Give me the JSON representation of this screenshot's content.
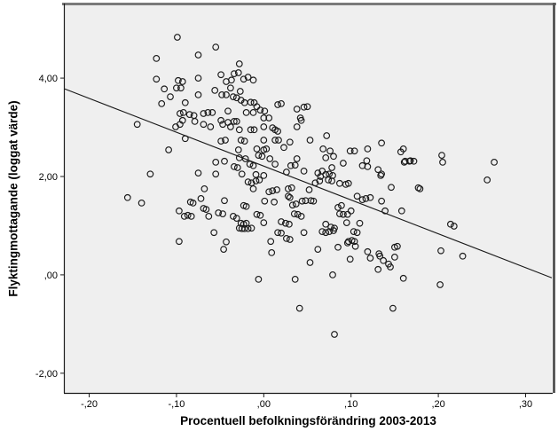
{
  "colors": {
    "plot_bg": "#efefef",
    "frame_dark": "#1a1a1a",
    "frame_top": "#7a7a7a",
    "frame_right": "#5a5a5a",
    "marker": "#1a1a1a",
    "fit_line": "#1a1a1a",
    "page_bg": "#ffffff"
  },
  "chart_data": {
    "type": "scatter",
    "title": "",
    "xlabel": "Procentuell befolkningsförändring 2003-2013",
    "ylabel": "Flyktingmottagande (loggat värde)",
    "xlim": [
      -0.228,
      0.33
    ],
    "ylim": [
      -2.4,
      5.48
    ],
    "grid": false,
    "legend": "none",
    "marker": "open-circle",
    "x_ticks": {
      "values": [
        -0.2,
        -0.1,
        0.0,
        0.1,
        0.2,
        0.3
      ],
      "labels": [
        "-,20",
        "-,10",
        ",00",
        ",10",
        ",20",
        ",30"
      ]
    },
    "y_ticks": {
      "values": [
        -2.0,
        0.0,
        2.0,
        4.0
      ],
      "labels": [
        "-2,00",
        ",00",
        "2,00",
        "4,00"
      ]
    },
    "fit_line": {
      "x": [
        -0.228,
        0.33
      ],
      "y": [
        3.78,
        -0.06
      ]
    },
    "points": [
      [
        -0.099,
        4.83
      ],
      [
        -0.123,
        4.4
      ],
      [
        -0.123,
        3.98
      ],
      [
        -0.114,
        3.78
      ],
      [
        -0.098,
        3.95
      ],
      [
        -0.093,
        3.93
      ],
      [
        -0.1,
        3.8
      ],
      [
        -0.095,
        3.8
      ],
      [
        -0.107,
        3.62
      ],
      [
        -0.117,
        3.48
      ],
      [
        -0.09,
        3.5
      ],
      [
        -0.145,
        3.06
      ],
      [
        -0.096,
        3.28
      ],
      [
        -0.092,
        3.3
      ],
      [
        -0.101,
        3.01
      ],
      [
        -0.096,
        3.06
      ],
      [
        -0.093,
        3.14
      ],
      [
        -0.055,
        4.63
      ],
      [
        -0.075,
        4.47
      ],
      [
        -0.028,
        4.29
      ],
      [
        -0.075,
        4.0
      ],
      [
        -0.049,
        4.07
      ],
      [
        -0.029,
        4.11
      ],
      [
        -0.034,
        4.09
      ],
      [
        -0.023,
        3.98
      ],
      [
        -0.018,
        4.02
      ],
      [
        -0.012,
        3.96
      ],
      [
        -0.043,
        3.93
      ],
      [
        -0.037,
        3.96
      ],
      [
        -0.075,
        3.66
      ],
      [
        -0.056,
        3.75
      ],
      [
        -0.048,
        3.66
      ],
      [
        -0.043,
        3.66
      ],
      [
        -0.038,
        3.8
      ],
      [
        -0.035,
        3.62
      ],
      [
        -0.031,
        3.6
      ],
      [
        -0.026,
        3.55
      ],
      [
        -0.022,
        3.5
      ],
      [
        -0.027,
        3.73
      ],
      [
        -0.041,
        3.33
      ],
      [
        -0.015,
        3.51
      ],
      [
        -0.011,
        3.5
      ],
      [
        -0.008,
        3.42
      ],
      [
        -0.004,
        3.35
      ],
      [
        0.001,
        3.33
      ],
      [
        -0.02,
        3.3
      ],
      [
        -0.012,
        3.3
      ],
      [
        0.0,
        3.19
      ],
      [
        0.006,
        3.19
      ],
      [
        0.016,
        3.46
      ],
      [
        0.02,
        3.48
      ],
      [
        0.038,
        3.37
      ],
      [
        0.046,
        3.41
      ],
      [
        0.042,
        3.19
      ],
      [
        -0.085,
        3.26
      ],
      [
        -0.08,
        3.24
      ],
      [
        -0.069,
        3.28
      ],
      [
        -0.064,
        3.3
      ],
      [
        -0.059,
        3.3
      ],
      [
        -0.079,
        3.12
      ],
      [
        -0.069,
        3.06
      ],
      [
        -0.061,
        3.01
      ],
      [
        -0.049,
        3.14
      ],
      [
        -0.047,
        3.06
      ],
      [
        -0.041,
        3.1
      ],
      [
        -0.034,
        3.12
      ],
      [
        -0.031,
        3.12
      ],
      [
        -0.038,
        3.01
      ],
      [
        -0.028,
        2.95
      ],
      [
        -0.015,
        2.95
      ],
      [
        -0.011,
        2.95
      ],
      [
        0.0,
        3.01
      ],
      [
        0.01,
        2.99
      ],
      [
        0.013,
        2.95
      ],
      [
        0.016,
        2.92
      ],
      [
        0.038,
        3.01
      ],
      [
        0.043,
        3.14
      ],
      [
        0.05,
        3.42
      ],
      [
        0.072,
        2.83
      ],
      [
        -0.049,
        2.72
      ],
      [
        -0.044,
        2.74
      ],
      [
        -0.026,
        2.74
      ],
      [
        -0.022,
        2.72
      ],
      [
        0.0,
        2.74
      ],
      [
        0.013,
        2.74
      ],
      [
        0.017,
        2.74
      ],
      [
        0.03,
        2.7
      ],
      [
        -0.008,
        2.56
      ],
      [
        0.0,
        2.54
      ],
      [
        0.003,
        2.56
      ],
      [
        -0.029,
        2.54
      ],
      [
        0.023,
        2.59
      ],
      [
        -0.028,
        2.38
      ],
      [
        -0.021,
        2.36
      ],
      [
        -0.016,
        2.25
      ],
      [
        -0.012,
        2.22
      ],
      [
        -0.055,
        2.29
      ],
      [
        -0.045,
        2.31
      ],
      [
        -0.034,
        2.2
      ],
      [
        -0.03,
        2.18
      ],
      [
        -0.006,
        2.43
      ],
      [
        -0.002,
        2.41
      ],
      [
        0.007,
        2.36
      ],
      [
        0.038,
        2.36
      ],
      [
        0.013,
        2.25
      ],
      [
        0.031,
        2.22
      ],
      [
        0.036,
        2.23
      ],
      [
        0.026,
        2.09
      ],
      [
        0.046,
        2.11
      ],
      [
        -0.075,
        2.07
      ],
      [
        -0.055,
        2.05
      ],
      [
        -0.009,
        2.04
      ],
      [
        0.0,
        2.02
      ],
      [
        -0.025,
        2.05
      ],
      [
        -0.018,
        1.89
      ],
      [
        -0.014,
        1.87
      ],
      [
        -0.009,
        1.91
      ],
      [
        -0.005,
        1.93
      ],
      [
        -0.012,
        1.75
      ],
      [
        -0.068,
        1.75
      ],
      [
        0.006,
        1.69
      ],
      [
        0.01,
        1.71
      ],
      [
        0.015,
        1.73
      ],
      [
        0.028,
        1.75
      ],
      [
        0.032,
        1.77
      ],
      [
        0.028,
        1.6
      ],
      [
        0.03,
        1.57
      ],
      [
        -0.072,
        1.55
      ],
      [
        -0.069,
        1.35
      ],
      [
        -0.066,
        1.33
      ],
      [
        -0.084,
        1.48
      ],
      [
        -0.081,
        1.46
      ],
      [
        -0.045,
        1.51
      ],
      [
        -0.023,
        1.41
      ],
      [
        -0.02,
        1.39
      ],
      [
        0.001,
        1.5
      ],
      [
        0.012,
        1.48
      ],
      [
        0.033,
        1.42
      ],
      [
        0.037,
        1.44
      ],
      [
        0.044,
        1.5
      ],
      [
        0.048,
        1.51
      ],
      [
        -0.087,
        1.21
      ],
      [
        -0.083,
        1.19
      ],
      [
        -0.063,
        1.19
      ],
      [
        -0.052,
        1.26
      ],
      [
        -0.047,
        1.24
      ],
      [
        -0.035,
        1.19
      ],
      [
        -0.031,
        1.15
      ],
      [
        -0.026,
        1.05
      ],
      [
        -0.023,
        1.03
      ],
      [
        -0.02,
        1.05
      ],
      [
        -0.028,
        0.95
      ],
      [
        -0.025,
        0.94
      ],
      [
        -0.022,
        0.94
      ],
      [
        -0.018,
        0.94
      ],
      [
        -0.014,
        0.95
      ],
      [
        -0.008,
        1.23
      ],
      [
        -0.004,
        1.21
      ],
      [
        0.0,
        1.06
      ],
      [
        0.02,
        1.08
      ],
      [
        0.025,
        1.05
      ],
      [
        0.029,
        1.03
      ],
      [
        0.016,
        0.86
      ],
      [
        0.02,
        0.85
      ],
      [
        0.026,
        0.74
      ],
      [
        0.03,
        0.72
      ],
      [
        0.035,
        1.24
      ],
      [
        0.039,
        1.23
      ],
      [
        0.043,
        1.19
      ],
      [
        0.046,
        0.86
      ],
      [
        -0.057,
        0.86
      ],
      [
        -0.043,
        0.67
      ],
      [
        -0.046,
        0.52
      ],
      [
        0.008,
        0.68
      ],
      [
        0.009,
        0.45
      ],
      [
        -0.109,
        2.54
      ],
      [
        -0.13,
        2.05
      ],
      [
        -0.156,
        1.57
      ],
      [
        -0.14,
        1.46
      ],
      [
        -0.097,
        1.3
      ],
      [
        -0.091,
        1.19
      ],
      [
        -0.097,
        0.68
      ],
      [
        -0.09,
        2.77
      ],
      [
        0.053,
        2.74
      ],
      [
        0.068,
        2.56
      ],
      [
        0.076,
        2.52
      ],
      [
        0.071,
        2.38
      ],
      [
        0.08,
        2.41
      ],
      [
        0.099,
        2.52
      ],
      [
        0.104,
        2.52
      ],
      [
        0.119,
        2.56
      ],
      [
        0.135,
        2.68
      ],
      [
        0.16,
        2.56
      ],
      [
        0.091,
        2.27
      ],
      [
        0.113,
        2.22
      ],
      [
        0.118,
        2.32
      ],
      [
        0.119,
        2.2
      ],
      [
        0.162,
        2.31
      ],
      [
        0.168,
        2.32
      ],
      [
        0.062,
        2.07
      ],
      [
        0.067,
        2.11
      ],
      [
        0.065,
        2.0
      ],
      [
        0.071,
        2.04
      ],
      [
        0.075,
        2.05
      ],
      [
        0.078,
        2.18
      ],
      [
        0.079,
        2.02
      ],
      [
        0.074,
        1.93
      ],
      [
        0.078,
        1.91
      ],
      [
        0.059,
        1.87
      ],
      [
        0.064,
        1.91
      ],
      [
        0.087,
        1.86
      ],
      [
        0.094,
        1.84
      ],
      [
        0.097,
        1.86
      ],
      [
        0.131,
        2.14
      ],
      [
        0.135,
        2.05
      ],
      [
        0.134,
        2.02
      ],
      [
        0.146,
        1.78
      ],
      [
        0.177,
        1.77
      ],
      [
        0.179,
        1.75
      ],
      [
        0.052,
        1.73
      ],
      [
        0.054,
        1.51
      ],
      [
        0.057,
        1.5
      ],
      [
        0.107,
        1.6
      ],
      [
        0.113,
        1.53
      ],
      [
        0.117,
        1.55
      ],
      [
        0.122,
        1.57
      ],
      [
        0.135,
        1.5
      ],
      [
        0.139,
        1.3
      ],
      [
        0.158,
        1.3
      ],
      [
        0.085,
        1.37
      ],
      [
        0.089,
        1.41
      ],
      [
        0.087,
        1.24
      ],
      [
        0.091,
        1.23
      ],
      [
        0.096,
        1.23
      ],
      [
        0.1,
        1.3
      ],
      [
        0.095,
        1.06
      ],
      [
        0.11,
        1.05
      ],
      [
        0.071,
        1.03
      ],
      [
        0.077,
        0.97
      ],
      [
        0.081,
        0.95
      ],
      [
        0.067,
        0.88
      ],
      [
        0.071,
        0.86
      ],
      [
        0.075,
        0.88
      ],
      [
        0.08,
        0.9
      ],
      [
        0.103,
        0.88
      ],
      [
        0.107,
        0.86
      ],
      [
        0.097,
        0.68
      ],
      [
        0.101,
        0.7
      ],
      [
        0.104,
        0.68
      ],
      [
        0.105,
        0.58
      ],
      [
        0.096,
        0.65
      ],
      [
        0.085,
        0.56
      ],
      [
        0.062,
        0.52
      ],
      [
        0.119,
        0.47
      ],
      [
        0.122,
        0.34
      ],
      [
        0.133,
        0.38
      ],
      [
        0.137,
        0.29
      ],
      [
        0.15,
        0.56
      ],
      [
        0.15,
        0.36
      ],
      [
        0.143,
        0.22
      ],
      [
        0.099,
        0.32
      ],
      [
        0.053,
        0.25
      ],
      [
        0.157,
        2.5
      ],
      [
        0.161,
        2.29
      ],
      [
        0.167,
        2.31
      ],
      [
        0.172,
        2.31
      ],
      [
        0.204,
        2.43
      ],
      [
        0.205,
        2.29
      ],
      [
        0.264,
        2.29
      ],
      [
        0.256,
        1.93
      ],
      [
        0.214,
        1.03
      ],
      [
        0.218,
        0.99
      ],
      [
        0.153,
        0.58
      ],
      [
        0.132,
        0.43
      ],
      [
        0.131,
        0.11
      ],
      [
        0.16,
        -0.07
      ],
      [
        0.202,
        -0.2
      ],
      [
        0.228,
        0.38
      ],
      [
        0.203,
        0.49
      ],
      [
        -0.006,
        -0.09
      ],
      [
        0.036,
        -0.09
      ],
      [
        0.041,
        -0.68
      ],
      [
        0.079,
        0.0
      ],
      [
        0.145,
        0.16
      ],
      [
        0.081,
        -1.21
      ],
      [
        0.148,
        -0.68
      ]
    ]
  }
}
